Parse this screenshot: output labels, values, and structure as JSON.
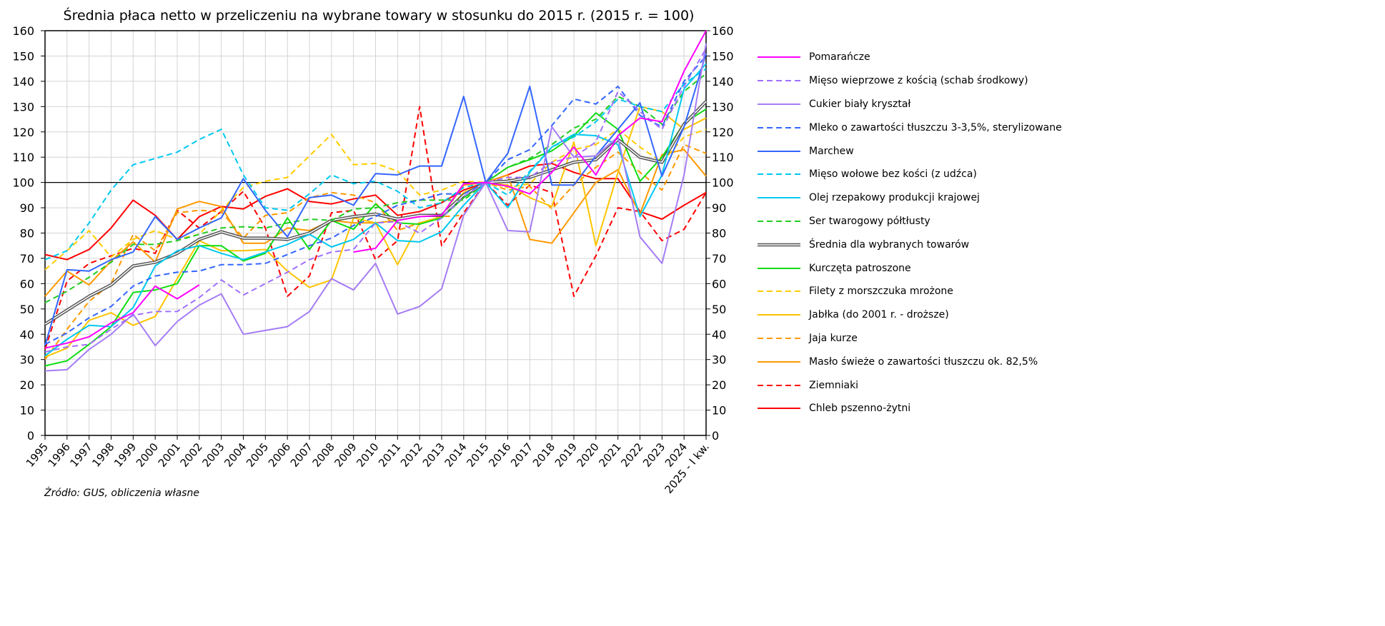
{
  "chart_data": {
    "type": "line",
    "title": "Średnia płaca netto w przeliczeniu na wybrane towary w stosunku do 2015 r. (2015 r. = 100)",
    "xlabel": "",
    "ylabel": "",
    "ylim": [
      0,
      160
    ],
    "yticks": [
      0,
      10,
      20,
      30,
      40,
      50,
      60,
      70,
      80,
      90,
      100,
      110,
      120,
      130,
      140,
      150,
      160
    ],
    "grid": true,
    "reference_line": 100,
    "legend_position": "right",
    "categories": [
      "1995",
      "1996",
      "1997",
      "1998",
      "1999",
      "2000",
      "2001",
      "2002",
      "2003",
      "2004",
      "2005",
      "2006",
      "2007",
      "2008",
      "2009",
      "2010",
      "2011",
      "2012",
      "2013",
      "2014",
      "2015",
      "2016",
      "2017",
      "2018",
      "2019",
      "2020",
      "2021",
      "2022",
      "2023",
      "2024",
      "2025 - I kw."
    ],
    "series": [
      {
        "name": "Pomarańcze",
        "color": "#ff00ff",
        "dash": false,
        "values": [
          34.5,
          36.5,
          39,
          44.5,
          48.5,
          59,
          54,
          59.5,
          null,
          null,
          null,
          null,
          null,
          null,
          72.5,
          74,
          85,
          86.5,
          87,
          99.5,
          100,
          98.5,
          95.5,
          104,
          114,
          103,
          118.5,
          125.5,
          124,
          144,
          160
        ]
      },
      {
        "name": "Mięso wieprzowe z kością (schab środkowy)",
        "color": "#a070ff",
        "dash": true,
        "values": [
          33,
          35,
          36,
          42,
          47.5,
          49,
          49,
          54.5,
          61.5,
          55.5,
          60,
          64.5,
          69.5,
          72.5,
          73.5,
          84,
          84.5,
          80,
          86,
          94.5,
          100,
          102,
          102,
          108,
          110,
          116,
          136,
          128,
          121,
          138,
          153
        ]
      },
      {
        "name": "Cukier biały kryształ",
        "color": "#a57cf5",
        "dash": false,
        "values": [
          25.5,
          26,
          34,
          40,
          48,
          35.5,
          45,
          51.5,
          56,
          40,
          41.5,
          43,
          49,
          62,
          57.5,
          68,
          48,
          51,
          58,
          87,
          100,
          81,
          80.5,
          122,
          110,
          110.5,
          118,
          78.5,
          68,
          103,
          155
        ]
      },
      {
        "name": "Mleko o zawartości tłuszczu 3-3,5%, sterylizowane",
        "color": "#3366ff",
        "dash": true,
        "values": [
          36,
          40.5,
          46.5,
          51,
          59,
          63,
          64.5,
          65,
          67.5,
          67.5,
          68,
          71.5,
          75,
          78,
          83,
          86.5,
          91,
          93,
          95.5,
          95.5,
          100,
          109,
          113,
          122.5,
          133,
          131,
          138,
          126.5,
          122,
          140,
          150
        ]
      },
      {
        "name": "Marchew",
        "color": "#3366ff",
        "dash": false,
        "values": [
          35.5,
          65.5,
          65,
          69.5,
          72.5,
          86.5,
          77.5,
          82,
          86,
          101.5,
          89,
          78.5,
          94,
          95,
          91,
          103.5,
          103,
          106.5,
          106.5,
          134,
          100,
          111.5,
          138,
          99,
          99,
          110.5,
          121,
          131.5,
          102.5,
          122,
          151
        ]
      },
      {
        "name": "Mięso wołowe bez kości (z udźca)",
        "color": "#00c8f0",
        "dash": true,
        "values": [
          69.5,
          73,
          84,
          97,
          107,
          109.5,
          112,
          117,
          121,
          103,
          90,
          89,
          95.5,
          103,
          99.5,
          100.5,
          96.5,
          90,
          92,
          98,
          100,
          95,
          104.5,
          114,
          118,
          124,
          133,
          130,
          128,
          139,
          145
        ]
      },
      {
        "name": "Olej rzepakowy produkcji krajowej",
        "color": "#00c8f0",
        "dash": false,
        "values": [
          31.5,
          38,
          43.5,
          43,
          50.5,
          67,
          73,
          75,
          72,
          69.5,
          72.5,
          75.5,
          79.5,
          74.5,
          77.5,
          84,
          77,
          76.5,
          80.5,
          91,
          100,
          90,
          104,
          114,
          119,
          118.5,
          115,
          86.5,
          103,
          137,
          147
        ]
      },
      {
        "name": "Ser twarogowy półtłusty",
        "color": "#22cc22",
        "dash": true,
        "values": [
          52.5,
          57,
          62.5,
          68.5,
          75.5,
          75.5,
          77,
          79.5,
          82,
          82.5,
          82,
          84,
          85.5,
          85,
          89.5,
          90,
          92,
          93,
          93,
          93,
          100,
          106,
          109.5,
          115,
          121.5,
          125,
          134,
          130,
          123,
          136,
          143
        ]
      },
      {
        "name": "Średnia dla wybranych towarów",
        "color": "#555555",
        "dash": false,
        "double": true,
        "values": [
          44,
          49.5,
          55,
          59.5,
          67,
          68.5,
          72,
          77.5,
          80.5,
          78,
          78,
          77.5,
          80,
          85,
          86.5,
          87.5,
          85.5,
          87,
          87,
          95,
          100,
          100.5,
          102,
          105,
          108,
          109,
          117,
          110,
          108,
          123,
          132
        ]
      },
      {
        "name": "Kurczęta patroszone",
        "color": "#11dd11",
        "dash": false,
        "values": [
          27.5,
          29.5,
          36,
          43,
          56.5,
          57.5,
          60,
          75,
          75,
          69,
          72,
          86,
          73.5,
          85,
          81.5,
          91.5,
          84,
          83.5,
          86,
          94,
          100,
          106,
          109,
          112.5,
          118.5,
          127.5,
          121,
          100.5,
          110,
          123.5,
          129
        ]
      },
      {
        "name": "Filety z morszczuka mrożone",
        "color": "#ffcc00",
        "dash": true,
        "values": [
          65.5,
          73,
          81,
          70.5,
          77.5,
          81,
          77.5,
          79.5,
          89,
          98,
          100.5,
          102,
          110.5,
          119,
          107,
          107.5,
          104.5,
          95,
          97,
          100.5,
          100,
          98,
          99.5,
          108,
          113,
          115,
          121,
          114,
          108,
          118,
          121
        ]
      },
      {
        "name": "Jabłka (do 2001 r. - droższe)",
        "color": "#ffc400",
        "dash": false,
        "values": [
          31,
          34.5,
          45.5,
          48.5,
          43.5,
          47,
          62,
          77,
          73,
          73,
          73.5,
          65,
          58.5,
          61.5,
          86,
          84,
          67.5,
          84,
          86.5,
          96,
          100,
          99,
          94,
          90.5,
          116,
          75,
          104,
          130,
          128,
          121,
          125.5
        ]
      },
      {
        "name": "Jaja kurze",
        "color": "#ff9900",
        "dash": true,
        "values": [
          30,
          42,
          53,
          60,
          79.5,
          73,
          88,
          89,
          88.5,
          78,
          87,
          88,
          94,
          96,
          95,
          92,
          81,
          84,
          86.5,
          87,
          100,
          97,
          98.5,
          89.5,
          99,
          106,
          112,
          104,
          97,
          115,
          111.5
        ]
      },
      {
        "name": "Masło świeże o zawartości tłuszczu ok. 82,5%",
        "color": "#ff9900",
        "dash": false,
        "values": [
          55,
          65,
          59.5,
          69,
          76.5,
          68.5,
          89.5,
          92.5,
          90.5,
          76,
          76,
          82,
          81,
          85,
          84,
          84,
          85,
          87,
          87,
          99,
          100,
          103,
          77.5,
          76,
          88,
          100,
          105,
          87.5,
          111,
          113,
          102.5
        ]
      },
      {
        "name": "Ziemniaki",
        "color": "#ff0000",
        "dash": true,
        "values": [
          34,
          61,
          68,
          71,
          74,
          72,
          89,
          82,
          88.5,
          96.5,
          82,
          55,
          63,
          88,
          89,
          69.5,
          77,
          130,
          75,
          88,
          100,
          91,
          99,
          96,
          55,
          71,
          90,
          88.5,
          77,
          81.5,
          96
        ]
      },
      {
        "name": "Chleb pszenno-żytni",
        "color": "#ff0000",
        "dash": false,
        "values": [
          71.5,
          69.5,
          73.5,
          82,
          93,
          87,
          77.5,
          86.5,
          90.5,
          89.5,
          94.5,
          97.5,
          92.5,
          91.5,
          93.5,
          95,
          87,
          88.5,
          92,
          97,
          100,
          103,
          106.5,
          107.5,
          104,
          101.5,
          101.5,
          88.5,
          85.5,
          91,
          96
        ]
      }
    ]
  },
  "legend": {
    "items": [
      "Pomarańcze",
      "Mięso wieprzowe z kością (schab środkowy)",
      "Cukier biały kryształ",
      "Mleko o zawartości tłuszczu 3-3,5%, sterylizowane",
      "Marchew",
      "Mięso wołowe bez kości (z udźca)",
      "Olej rzepakowy produkcji krajowej",
      "Ser twarogowy półtłusty",
      "Średnia dla wybranych towarów",
      "Kurczęta patroszone",
      "Filety z morszczuka mrożone",
      "Jabłka (do 2001 r. - droższe)",
      "Jaja kurze",
      "Masło świeże o zawartości tłuszczu ok. 82,5%",
      "Ziemniaki",
      "Chleb pszenno-żytni"
    ]
  },
  "source": "Źródło: GUS, obliczenia własne"
}
